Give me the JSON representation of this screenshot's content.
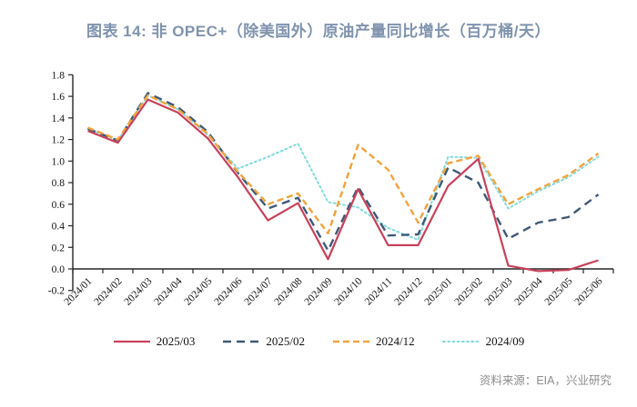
{
  "title": "图表 14: 非 OPEC+（除美国外）原油产量同比增长（百万桶/天）",
  "source_note": "资料来源：EIA，兴业研究",
  "colors": {
    "title": "#7F93AE",
    "axis": "#262626",
    "source_text": "#8C8C8C"
  },
  "chart_data": {
    "type": "line",
    "title": "图表 14: 非 OPEC+（除美国外）原油产量同比增长（百万桶/天）",
    "xlabel": "",
    "ylabel": "",
    "ylim": [
      -0.2,
      1.8
    ],
    "ytick_step": 0.2,
    "grid": false,
    "legend_position": "bottom",
    "categories": [
      "2024/01",
      "2024/02",
      "2024/03",
      "2024/04",
      "2024/05",
      "2024/06",
      "2024/07",
      "2024/08",
      "2024/09",
      "2024/10",
      "2024/11",
      "2024/12",
      "2025/01",
      "2025/02",
      "2025/03",
      "2025/04",
      "2025/05",
      "2025/06"
    ],
    "series": [
      {
        "name": "2025/03",
        "color": "#C8415A",
        "line_style": "solid",
        "values": [
          1.28,
          1.17,
          1.57,
          1.45,
          1.21,
          0.85,
          0.45,
          0.61,
          0.09,
          0.74,
          0.22,
          0.22,
          0.77,
          1.02,
          0.03,
          -0.02,
          -0.01,
          0.08
        ]
      },
      {
        "name": "2025/02",
        "color": "#3E5877",
        "line_style": "dashed",
        "values": [
          1.3,
          1.19,
          1.63,
          1.5,
          1.27,
          0.89,
          0.56,
          0.66,
          0.17,
          0.76,
          0.31,
          0.32,
          0.94,
          0.8,
          0.28,
          0.43,
          0.48,
          0.69
        ]
      },
      {
        "name": "2024/12",
        "color": "#F2A33C",
        "line_style": "dashed-short",
        "values": [
          1.31,
          1.2,
          1.61,
          1.48,
          1.25,
          0.9,
          0.6,
          0.7,
          0.33,
          1.15,
          0.92,
          0.43,
          0.98,
          1.05,
          0.6,
          0.74,
          0.87,
          1.07
        ]
      },
      {
        "name": "2024/09",
        "color": "#82DBDB",
        "line_style": "dotted",
        "values": [
          1.3,
          1.19,
          1.61,
          1.48,
          1.24,
          0.93,
          1.04,
          1.16,
          0.62,
          0.57,
          0.38,
          0.27,
          1.04,
          1.03,
          0.56,
          0.72,
          0.85,
          1.04
        ]
      }
    ]
  }
}
